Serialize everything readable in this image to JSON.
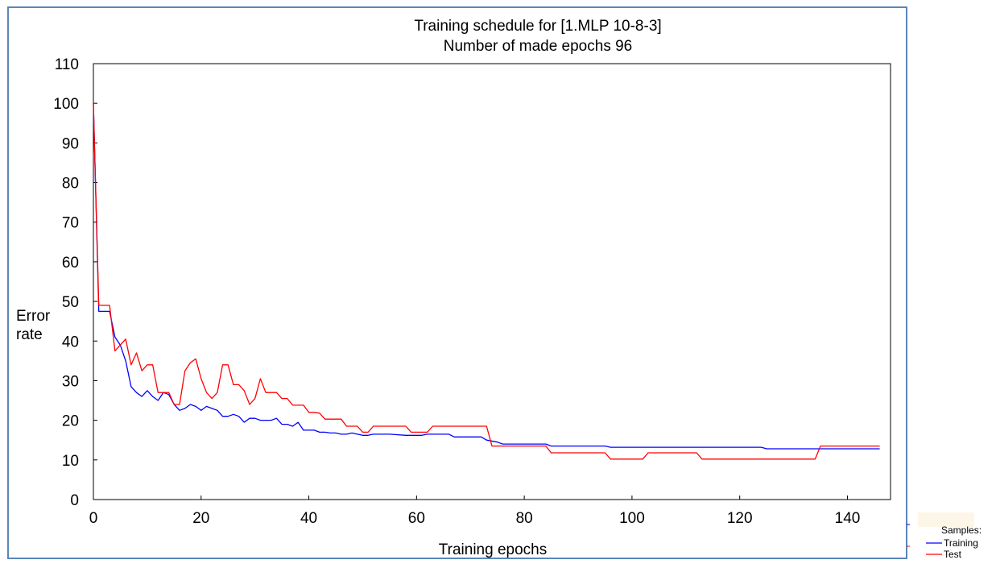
{
  "chart_data": {
    "type": "line",
    "title": "Training schedule for [1.MLP 10-8-3]",
    "subtitle": "Number of made epochs 96",
    "xlabel": "Training epochs",
    "ylabel_line1": "Error",
    "ylabel_line2": "rate",
    "xlim": [
      0,
      148
    ],
    "ylim": [
      0,
      110
    ],
    "xticks": [
      0,
      20,
      40,
      60,
      80,
      100,
      120,
      140
    ],
    "yticks": [
      0,
      10,
      20,
      30,
      40,
      50,
      60,
      70,
      80,
      90,
      100,
      110
    ],
    "grid": false,
    "legend_title": "Samples:",
    "legend_position": "bottom-right",
    "series": [
      {
        "name": "Training",
        "color": "#0000ff",
        "points": [
          [
            0,
            100
          ],
          [
            1,
            47.5
          ],
          [
            3,
            47.5
          ],
          [
            4,
            41
          ],
          [
            5,
            39
          ],
          [
            6,
            35
          ],
          [
            7,
            28.5
          ],
          [
            8,
            27
          ],
          [
            9,
            26
          ],
          [
            10,
            27.5
          ],
          [
            11,
            26
          ],
          [
            12,
            25
          ],
          [
            13,
            27
          ],
          [
            14,
            26.5
          ],
          [
            15,
            24
          ],
          [
            16,
            22.5
          ],
          [
            17,
            23
          ],
          [
            18,
            24
          ],
          [
            19,
            23.5
          ],
          [
            20,
            22.5
          ],
          [
            21,
            23.5
          ],
          [
            22,
            23
          ],
          [
            23,
            22.5
          ],
          [
            24,
            21
          ],
          [
            25,
            21
          ],
          [
            26,
            21.5
          ],
          [
            27,
            21
          ],
          [
            28,
            19.5
          ],
          [
            29,
            20.5
          ],
          [
            30,
            20.5
          ],
          [
            31,
            20
          ],
          [
            32,
            20
          ],
          [
            33,
            20
          ],
          [
            34,
            20.5
          ],
          [
            35,
            19
          ],
          [
            36,
            19
          ],
          [
            37,
            18.5
          ],
          [
            38,
            19.5
          ],
          [
            39,
            17.5
          ],
          [
            40,
            17.5
          ],
          [
            41,
            17.5
          ],
          [
            42,
            17
          ],
          [
            43,
            17
          ],
          [
            44,
            16.8
          ],
          [
            45,
            16.8
          ],
          [
            46,
            16.5
          ],
          [
            47,
            16.5
          ],
          [
            48,
            16.8
          ],
          [
            49,
            16.5
          ],
          [
            50,
            16.2
          ],
          [
            51,
            16.2
          ],
          [
            52,
            16.5
          ],
          [
            55,
            16.5
          ],
          [
            58,
            16.2
          ],
          [
            61,
            16.2
          ],
          [
            62,
            16.5
          ],
          [
            66,
            16.5
          ],
          [
            67,
            15.8
          ],
          [
            72,
            15.8
          ],
          [
            73,
            15
          ],
          [
            75,
            14.5
          ],
          [
            76,
            14
          ],
          [
            84,
            14
          ],
          [
            85,
            13.5
          ],
          [
            95,
            13.5
          ],
          [
            96,
            13.2
          ],
          [
            124,
            13.2
          ],
          [
            125,
            12.8
          ],
          [
            146,
            12.8
          ]
        ]
      },
      {
        "name": "Test",
        "color": "#ff0000",
        "points": [
          [
            0,
            100
          ],
          [
            1,
            49
          ],
          [
            3,
            49
          ],
          [
            4,
            37.5
          ],
          [
            5,
            39
          ],
          [
            6,
            40.5
          ],
          [
            7,
            34
          ],
          [
            8,
            37
          ],
          [
            9,
            32.5
          ],
          [
            10,
            34
          ],
          [
            11,
            34
          ],
          [
            12,
            27
          ],
          [
            13,
            27
          ],
          [
            14,
            27
          ],
          [
            15,
            24
          ],
          [
            16,
            24
          ],
          [
            17,
            32.5
          ],
          [
            18,
            34.5
          ],
          [
            19,
            35.5
          ],
          [
            20,
            30.5
          ],
          [
            21,
            27
          ],
          [
            22,
            25.5
          ],
          [
            23,
            27
          ],
          [
            24,
            34
          ],
          [
            25,
            34
          ],
          [
            26,
            29
          ],
          [
            27,
            29
          ],
          [
            28,
            27.5
          ],
          [
            29,
            24
          ],
          [
            30,
            25.5
          ],
          [
            31,
            30.5
          ],
          [
            32,
            27
          ],
          [
            33,
            27
          ],
          [
            34,
            27
          ],
          [
            35,
            25.5
          ],
          [
            36,
            25.5
          ],
          [
            37,
            23.8
          ],
          [
            38,
            23.8
          ],
          [
            39,
            23.8
          ],
          [
            40,
            22
          ],
          [
            41,
            22
          ],
          [
            42,
            21.8
          ],
          [
            43,
            20.3
          ],
          [
            46,
            20.3
          ],
          [
            47,
            18.5
          ],
          [
            49,
            18.5
          ],
          [
            50,
            17
          ],
          [
            51,
            17
          ],
          [
            52,
            18.5
          ],
          [
            58,
            18.5
          ],
          [
            59,
            17
          ],
          [
            62,
            17
          ],
          [
            63,
            18.5
          ],
          [
            73,
            18.5
          ],
          [
            74,
            13.5
          ],
          [
            84,
            13.5
          ],
          [
            85,
            11.8
          ],
          [
            95,
            11.8
          ],
          [
            96,
            10.2
          ],
          [
            102,
            10.2
          ],
          [
            103,
            11.8
          ],
          [
            112,
            11.8
          ],
          [
            113,
            10.2
          ],
          [
            134,
            10.2
          ],
          [
            135,
            13.5
          ],
          [
            146,
            13.5
          ]
        ]
      }
    ]
  }
}
